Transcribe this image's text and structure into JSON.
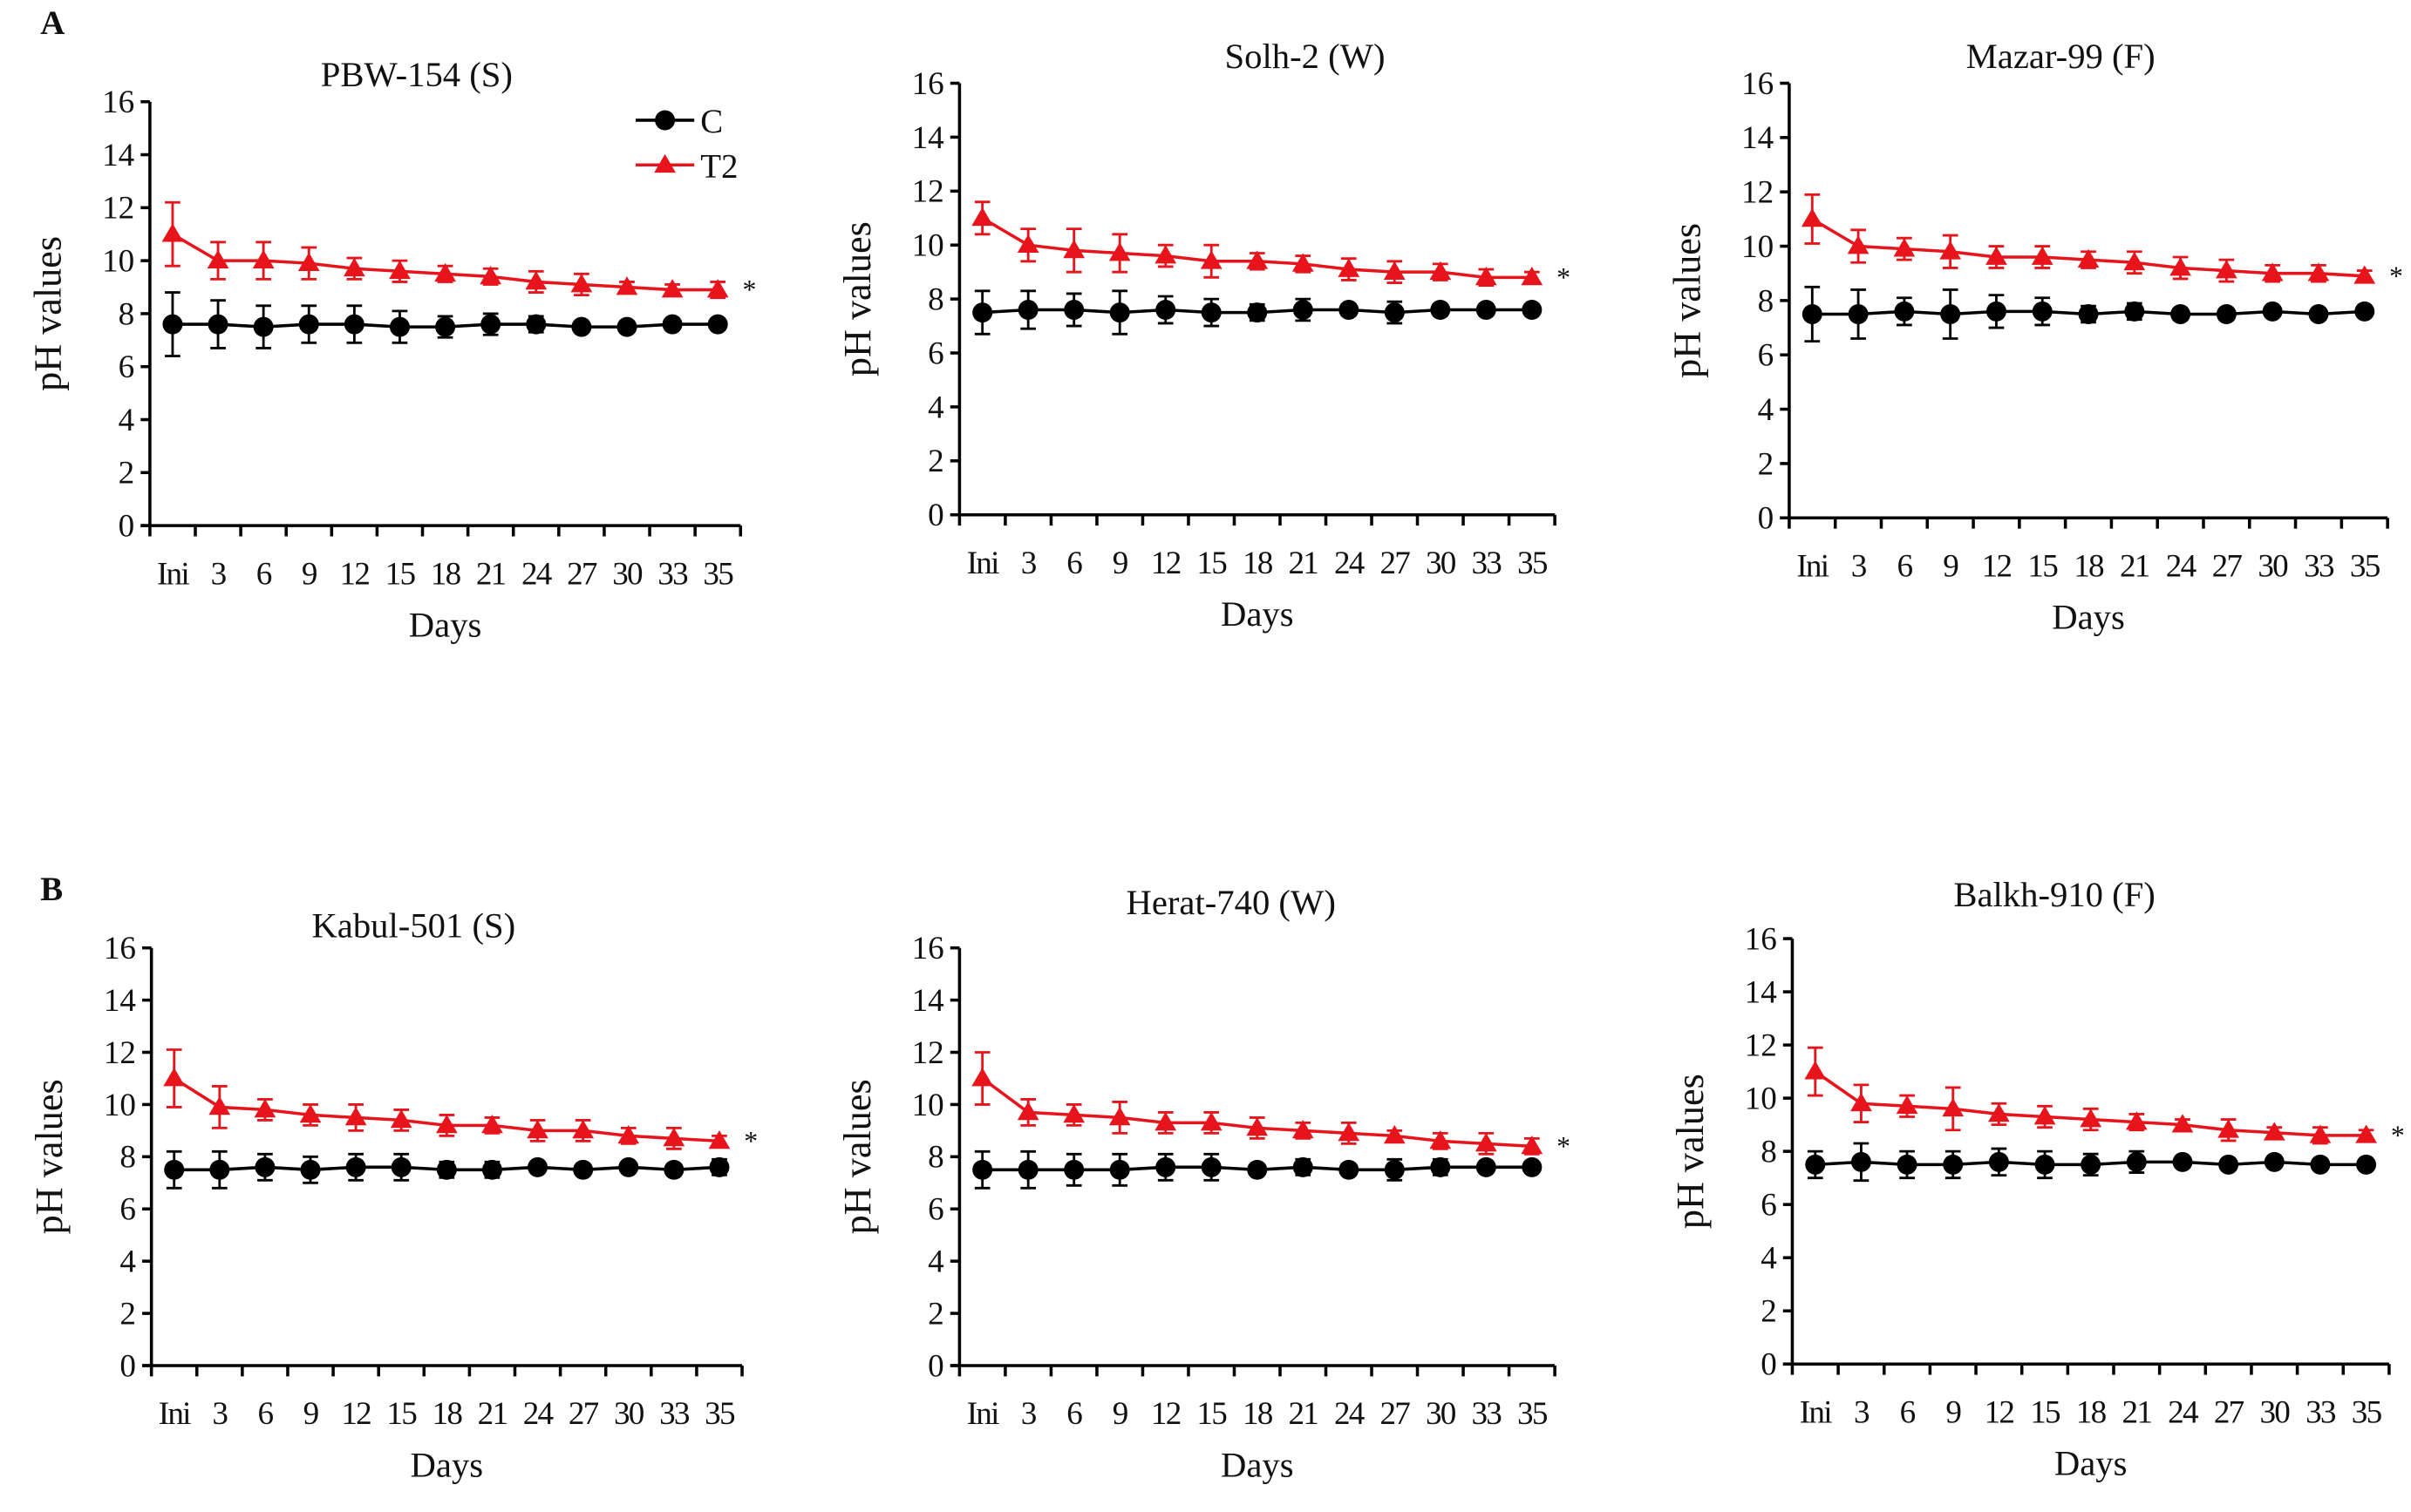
{
  "colors": {
    "C": "#000000",
    "T2": "#e8141b"
  },
  "legend": {
    "placement": "top-right of panel A1",
    "entries": [
      {
        "label": "C",
        "marker": "circle"
      },
      {
        "label": "T2",
        "marker": "triangle"
      }
    ]
  },
  "chart_data": [
    {
      "type": "line",
      "panel_letter": "A",
      "title": "PBW-154 (S)",
      "xlabel": "Days",
      "ylabel": "pH values",
      "ylim": [
        0,
        16
      ],
      "yticks": [
        0,
        2,
        4,
        6,
        8,
        10,
        12,
        14,
        16
      ],
      "grid": false,
      "annotation": "*",
      "categories": [
        "Ini",
        "3",
        "6",
        "9",
        "12",
        "15",
        "18",
        "21",
        "24",
        "27",
        "30",
        "33",
        "35"
      ],
      "series": [
        {
          "name": "C",
          "values": [
            7.6,
            7.6,
            7.5,
            7.6,
            7.6,
            7.5,
            7.5,
            7.6,
            7.6,
            7.5,
            7.5,
            7.6,
            7.6
          ],
          "errors": [
            1.2,
            0.9,
            0.8,
            0.7,
            0.7,
            0.6,
            0.4,
            0.4,
            0.3,
            0.1,
            0.2,
            0.1,
            0.1
          ]
        },
        {
          "name": "T2",
          "values": [
            11.0,
            10.0,
            10.0,
            9.9,
            9.7,
            9.6,
            9.5,
            9.4,
            9.2,
            9.1,
            9.0,
            8.9,
            8.9
          ],
          "errors": [
            1.2,
            0.7,
            0.7,
            0.6,
            0.4,
            0.4,
            0.3,
            0.3,
            0.4,
            0.4,
            0.2,
            0.2,
            0.3
          ]
        }
      ]
    },
    {
      "type": "line",
      "panel_letter": "",
      "title": "Solh-2 (W)",
      "xlabel": "Days",
      "ylabel": "pH values",
      "ylim": [
        0,
        16
      ],
      "yticks": [
        0,
        2,
        4,
        6,
        8,
        10,
        12,
        14,
        16
      ],
      "grid": false,
      "annotation": "*",
      "categories": [
        "Ini",
        "3",
        "6",
        "9",
        "12",
        "15",
        "18",
        "21",
        "24",
        "27",
        "30",
        "33",
        "35"
      ],
      "series": [
        {
          "name": "C",
          "values": [
            7.5,
            7.6,
            7.6,
            7.5,
            7.6,
            7.5,
            7.5,
            7.6,
            7.6,
            7.5,
            7.6,
            7.6,
            7.6
          ],
          "errors": [
            0.8,
            0.7,
            0.6,
            0.8,
            0.5,
            0.5,
            0.3,
            0.4,
            0.2,
            0.4,
            0.2,
            0.1,
            0.1
          ]
        },
        {
          "name": "T2",
          "values": [
            11.0,
            10.0,
            9.8,
            9.7,
            9.6,
            9.4,
            9.4,
            9.3,
            9.1,
            9.0,
            9.0,
            8.8,
            8.8
          ],
          "errors": [
            0.6,
            0.6,
            0.8,
            0.7,
            0.4,
            0.6,
            0.3,
            0.3,
            0.4,
            0.4,
            0.3,
            0.3,
            0.2
          ]
        }
      ]
    },
    {
      "type": "line",
      "panel_letter": "",
      "title": "Mazar-99 (F)",
      "xlabel": "Days",
      "ylabel": "pH values",
      "ylim": [
        0,
        16
      ],
      "yticks": [
        0,
        2,
        4,
        6,
        8,
        10,
        12,
        14,
        16
      ],
      "grid": false,
      "annotation": "*",
      "categories": [
        "Ini",
        "3",
        "6",
        "9",
        "12",
        "15",
        "18",
        "21",
        "24",
        "27",
        "30",
        "33",
        "35"
      ],
      "series": [
        {
          "name": "C",
          "values": [
            7.5,
            7.5,
            7.6,
            7.5,
            7.6,
            7.6,
            7.5,
            7.6,
            7.5,
            7.5,
            7.6,
            7.5,
            7.6
          ],
          "errors": [
            1.0,
            0.9,
            0.5,
            0.9,
            0.6,
            0.5,
            0.3,
            0.3,
            0.2,
            0.2,
            0.1,
            0.1,
            0.1
          ]
        },
        {
          "name": "T2",
          "values": [
            11.0,
            10.0,
            9.9,
            9.8,
            9.6,
            9.6,
            9.5,
            9.4,
            9.2,
            9.1,
            9.0,
            9.0,
            8.9
          ],
          "errors": [
            0.9,
            0.6,
            0.4,
            0.6,
            0.4,
            0.4,
            0.3,
            0.4,
            0.4,
            0.4,
            0.3,
            0.3,
            0.2
          ]
        }
      ]
    },
    {
      "type": "line",
      "panel_letter": "B",
      "title": "Kabul-501 (S)",
      "xlabel": "Days",
      "ylabel": "pH values",
      "ylim": [
        0,
        16
      ],
      "yticks": [
        0,
        2,
        4,
        6,
        8,
        10,
        12,
        14,
        16
      ],
      "grid": false,
      "annotation": "*",
      "categories": [
        "Ini",
        "3",
        "6",
        "9",
        "12",
        "15",
        "18",
        "21",
        "24",
        "27",
        "30",
        "33",
        "35"
      ],
      "series": [
        {
          "name": "C",
          "values": [
            7.5,
            7.5,
            7.6,
            7.5,
            7.6,
            7.6,
            7.5,
            7.5,
            7.6,
            7.5,
            7.6,
            7.5,
            7.6
          ],
          "errors": [
            0.7,
            0.7,
            0.5,
            0.5,
            0.5,
            0.5,
            0.3,
            0.3,
            0.2,
            0.1,
            0.1,
            0.1,
            0.3
          ]
        },
        {
          "name": "T2",
          "values": [
            11.0,
            9.9,
            9.8,
            9.6,
            9.5,
            9.4,
            9.2,
            9.2,
            9.0,
            9.0,
            8.8,
            8.7,
            8.6
          ],
          "errors": [
            1.1,
            0.8,
            0.4,
            0.4,
            0.5,
            0.4,
            0.4,
            0.3,
            0.4,
            0.4,
            0.3,
            0.4,
            0.2
          ]
        }
      ]
    },
    {
      "type": "line",
      "panel_letter": "",
      "title": "Herat-740 (W)",
      "xlabel": "Days",
      "ylabel": "pH values",
      "ylim": [
        0,
        16
      ],
      "yticks": [
        0,
        2,
        4,
        6,
        8,
        10,
        12,
        14,
        16
      ],
      "grid": false,
      "annotation": "*",
      "categories": [
        "Ini",
        "3",
        "6",
        "9",
        "12",
        "15",
        "18",
        "21",
        "24",
        "27",
        "30",
        "33",
        "35"
      ],
      "series": [
        {
          "name": "C",
          "values": [
            7.5,
            7.5,
            7.5,
            7.5,
            7.6,
            7.6,
            7.5,
            7.6,
            7.5,
            7.5,
            7.6,
            7.6,
            7.6
          ],
          "errors": [
            0.7,
            0.7,
            0.6,
            0.6,
            0.5,
            0.5,
            0.2,
            0.3,
            0.2,
            0.4,
            0.3,
            0.2,
            0.1
          ]
        },
        {
          "name": "T2",
          "values": [
            11.0,
            9.7,
            9.6,
            9.5,
            9.3,
            9.3,
            9.1,
            9.0,
            8.9,
            8.8,
            8.6,
            8.5,
            8.4
          ],
          "errors": [
            1.0,
            0.5,
            0.4,
            0.6,
            0.4,
            0.4,
            0.4,
            0.3,
            0.4,
            0.2,
            0.3,
            0.4,
            0.3
          ]
        }
      ]
    },
    {
      "type": "line",
      "panel_letter": "",
      "title": "Balkh-910 (F)",
      "xlabel": "Days",
      "ylabel": "pH values",
      "ylim": [
        0,
        16
      ],
      "yticks": [
        0,
        2,
        4,
        6,
        8,
        10,
        12,
        14,
        16
      ],
      "grid": false,
      "annotation": "*",
      "categories": [
        "Ini",
        "3",
        "6",
        "9",
        "12",
        "15",
        "18",
        "21",
        "24",
        "27",
        "30",
        "33",
        "35"
      ],
      "series": [
        {
          "name": "C",
          "values": [
            7.5,
            7.6,
            7.5,
            7.5,
            7.6,
            7.5,
            7.5,
            7.6,
            7.6,
            7.5,
            7.6,
            7.5,
            7.5
          ],
          "errors": [
            0.5,
            0.7,
            0.5,
            0.5,
            0.5,
            0.5,
            0.4,
            0.4,
            0.2,
            0.1,
            0.1,
            0.1,
            0.1
          ]
        },
        {
          "name": "T2",
          "values": [
            11.0,
            9.8,
            9.7,
            9.6,
            9.4,
            9.3,
            9.2,
            9.1,
            9.0,
            8.8,
            8.7,
            8.6,
            8.6
          ],
          "errors": [
            0.9,
            0.7,
            0.4,
            0.8,
            0.4,
            0.4,
            0.4,
            0.3,
            0.2,
            0.4,
            0.2,
            0.3,
            0.2
          ]
        }
      ]
    }
  ]
}
